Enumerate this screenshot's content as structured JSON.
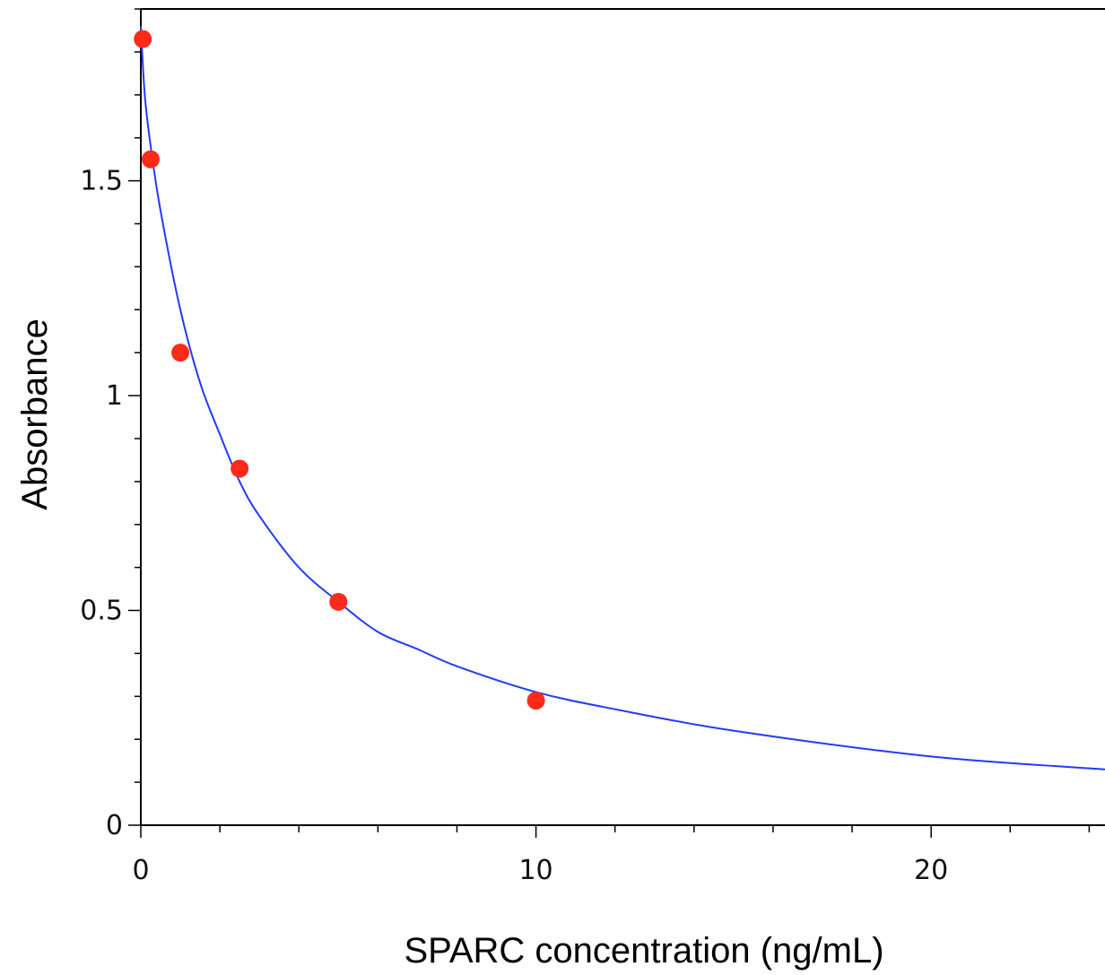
{
  "chart_data": {
    "type": "scatter",
    "title": "",
    "xlabel": "SPARC concentration (ng/mL)",
    "ylabel": "Absorbance",
    "xlim": [
      0,
      24.4
    ],
    "ylim": [
      0,
      1.9
    ],
    "x_ticks": [
      0,
      10,
      20
    ],
    "y_ticks": [
      0,
      0.5,
      1,
      1.5
    ],
    "x_tick_labels": [
      "0",
      "10",
      "20"
    ],
    "y_tick_labels": [
      "0",
      "0.5",
      "1",
      "1.5"
    ],
    "grid": false,
    "legend": "none",
    "series": [
      {
        "kind": "points",
        "color": "#ff2a1a",
        "x": [
          0.05,
          0.25,
          1.0,
          2.5,
          5.0,
          10.0
        ],
        "y": [
          1.83,
          1.55,
          1.1,
          0.83,
          0.52,
          0.29
        ]
      },
      {
        "kind": "fitted-curve",
        "color": "#1f3bff",
        "x": [
          0,
          0.1,
          0.25,
          0.5,
          1.0,
          1.5,
          2.0,
          2.5,
          3.0,
          4.0,
          5.0,
          6.0,
          7.0,
          8.0,
          10.0,
          12.0,
          15.0,
          20.0,
          24.4
        ],
        "y": [
          1.86,
          1.7,
          1.58,
          1.43,
          1.2,
          1.03,
          0.91,
          0.8,
          0.72,
          0.6,
          0.52,
          0.45,
          0.41,
          0.37,
          0.31,
          0.27,
          0.22,
          0.16,
          0.13
        ]
      }
    ]
  }
}
